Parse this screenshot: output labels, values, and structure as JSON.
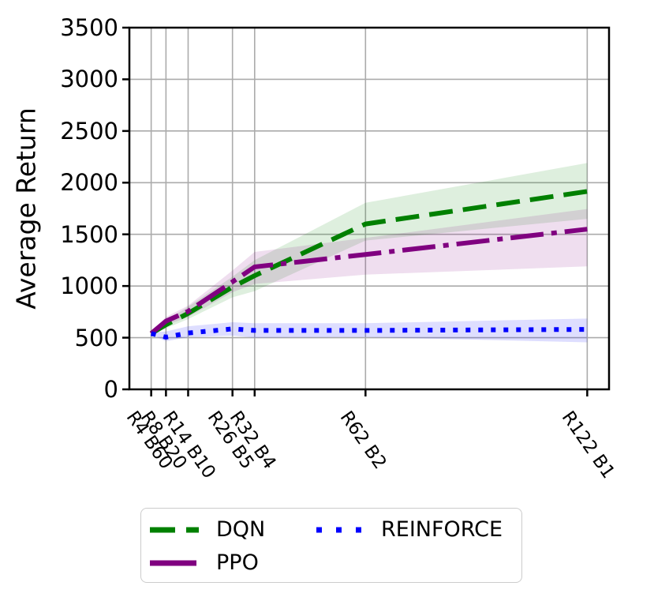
{
  "chart_data": {
    "type": "line",
    "title": "",
    "xlabel": "",
    "ylabel": "Average Return",
    "x": [
      4,
      8,
      14,
      26,
      32,
      62,
      122
    ],
    "x_tick_labels": [
      "R4 B60",
      "R8 B20",
      "R14 B10",
      "R26 B5",
      "R32 B4",
      "R62 B2",
      "R122 B1"
    ],
    "xlim": [
      -1.9,
      127.9
    ],
    "ylim": [
      0,
      3500
    ],
    "yticks": [
      0,
      500,
      1000,
      1500,
      2000,
      2500,
      3000,
      3500
    ],
    "grid": true,
    "grid_color": "#ababab",
    "axis_color": "#000000",
    "legend_position": "below-axes lower-left, 2 columns",
    "series": [
      {
        "name": "DQN",
        "color": "#008000",
        "linestyle": "dashed",
        "values": [
          540,
          625,
          735,
          990,
          1100,
          1600,
          1915
        ],
        "band_low": [
          530,
          590,
          680,
          890,
          950,
          1440,
          1650
        ],
        "band_high": [
          550,
          665,
          800,
          1090,
          1250,
          1805,
          2190
        ]
      },
      {
        "name": "PPO",
        "color": "#800080",
        "linestyle": "dashdot",
        "values": [
          540,
          660,
          755,
          1040,
          1185,
          1305,
          1550
        ],
        "band_low": [
          530,
          620,
          700,
          940,
          1020,
          1110,
          1190
        ],
        "band_high": [
          550,
          700,
          810,
          1150,
          1330,
          1465,
          1745
        ]
      },
      {
        "name": "REINFORCE",
        "color": "#0000ff",
        "linestyle": "dotted",
        "values": [
          540,
          505,
          545,
          585,
          570,
          570,
          580
        ],
        "band_low": [
          530,
          465,
          505,
          520,
          500,
          505,
          455
        ],
        "band_high": [
          550,
          560,
          610,
          650,
          640,
          640,
          685
        ]
      }
    ]
  }
}
